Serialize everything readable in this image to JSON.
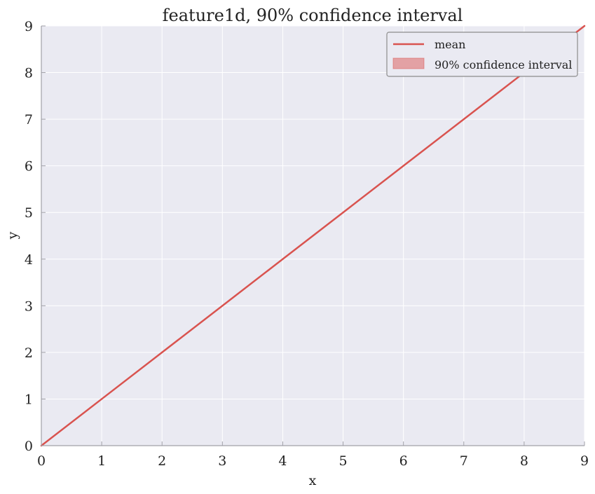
{
  "chart_data": {
    "type": "line",
    "title": "feature1d, 90% confidence interval",
    "xlabel": "x",
    "ylabel": "y",
    "xlim": [
      0,
      9
    ],
    "ylim": [
      0,
      9
    ],
    "x_ticks": [
      0,
      1,
      2,
      3,
      4,
      5,
      6,
      7,
      8,
      9
    ],
    "y_ticks": [
      0,
      1,
      2,
      3,
      4,
      5,
      6,
      7,
      8,
      9
    ],
    "grid": true,
    "legend_position": "top-right",
    "series": [
      {
        "name": "mean",
        "kind": "line",
        "color": "#d9534f",
        "x": [
          0,
          1,
          2,
          3,
          4,
          5,
          6,
          7,
          8,
          9
        ],
        "y": [
          0,
          1,
          2,
          3,
          4,
          5,
          6,
          7,
          8,
          9
        ]
      },
      {
        "name": "90% confidence interval",
        "kind": "band",
        "color": "#e3a1a4",
        "x": [
          0,
          1,
          2,
          3,
          4,
          5,
          6,
          7,
          8,
          9
        ],
        "lower": [
          0,
          1,
          2,
          3,
          4,
          5,
          6,
          7,
          8,
          9
        ],
        "upper": [
          0,
          1,
          2,
          3,
          4,
          5,
          6,
          7,
          8,
          9
        ]
      }
    ],
    "colors": {
      "plot_background": "#eaeaf2",
      "grid": "#ffffff",
      "axis": "#a0a0a8",
      "text": "#222222",
      "legend_border": "#8c8c8c",
      "legend_background": "#eaeaf2"
    }
  }
}
